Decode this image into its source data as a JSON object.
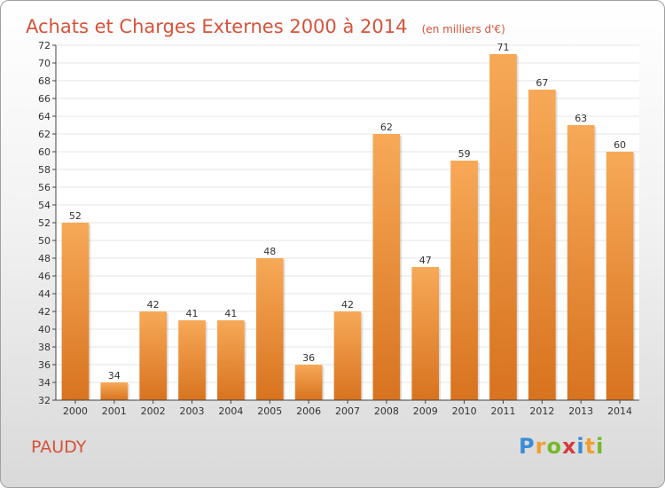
{
  "title": "Achats et Charges Externes 2000 à 2014",
  "unit_note": "(en milliers d'€)",
  "commune": "PAUDY",
  "logo": {
    "text": "Proxiti",
    "letters": [
      {
        "ch": "P",
        "color": "#3a8dd6"
      },
      {
        "ch": "r",
        "color": "#f0a02a"
      },
      {
        "ch": "o",
        "color": "#76b82a"
      },
      {
        "ch": "x",
        "color": "#d63a3a"
      },
      {
        "ch": "i",
        "color": "#3a8dd6"
      },
      {
        "ch": "t",
        "color": "#f0a02a"
      },
      {
        "ch": "i",
        "color": "#76b82a"
      }
    ]
  },
  "colors": {
    "title": "#d5533a",
    "bar_light": "#f7a957",
    "bar_dark": "#d8731f",
    "grid": "#e6e6e6",
    "axis": "#444444"
  },
  "chart_data": {
    "type": "bar",
    "categories": [
      "2000",
      "2001",
      "2002",
      "2003",
      "2004",
      "2005",
      "2006",
      "2007",
      "2008",
      "2009",
      "2010",
      "2011",
      "2012",
      "2013",
      "2014"
    ],
    "values": [
      52,
      34,
      42,
      41,
      41,
      48,
      36,
      42,
      62,
      47,
      59,
      71,
      67,
      63,
      60
    ],
    "ylim": [
      32,
      72
    ],
    "ytick_step": 2,
    "grid": true,
    "data_labels": true
  }
}
